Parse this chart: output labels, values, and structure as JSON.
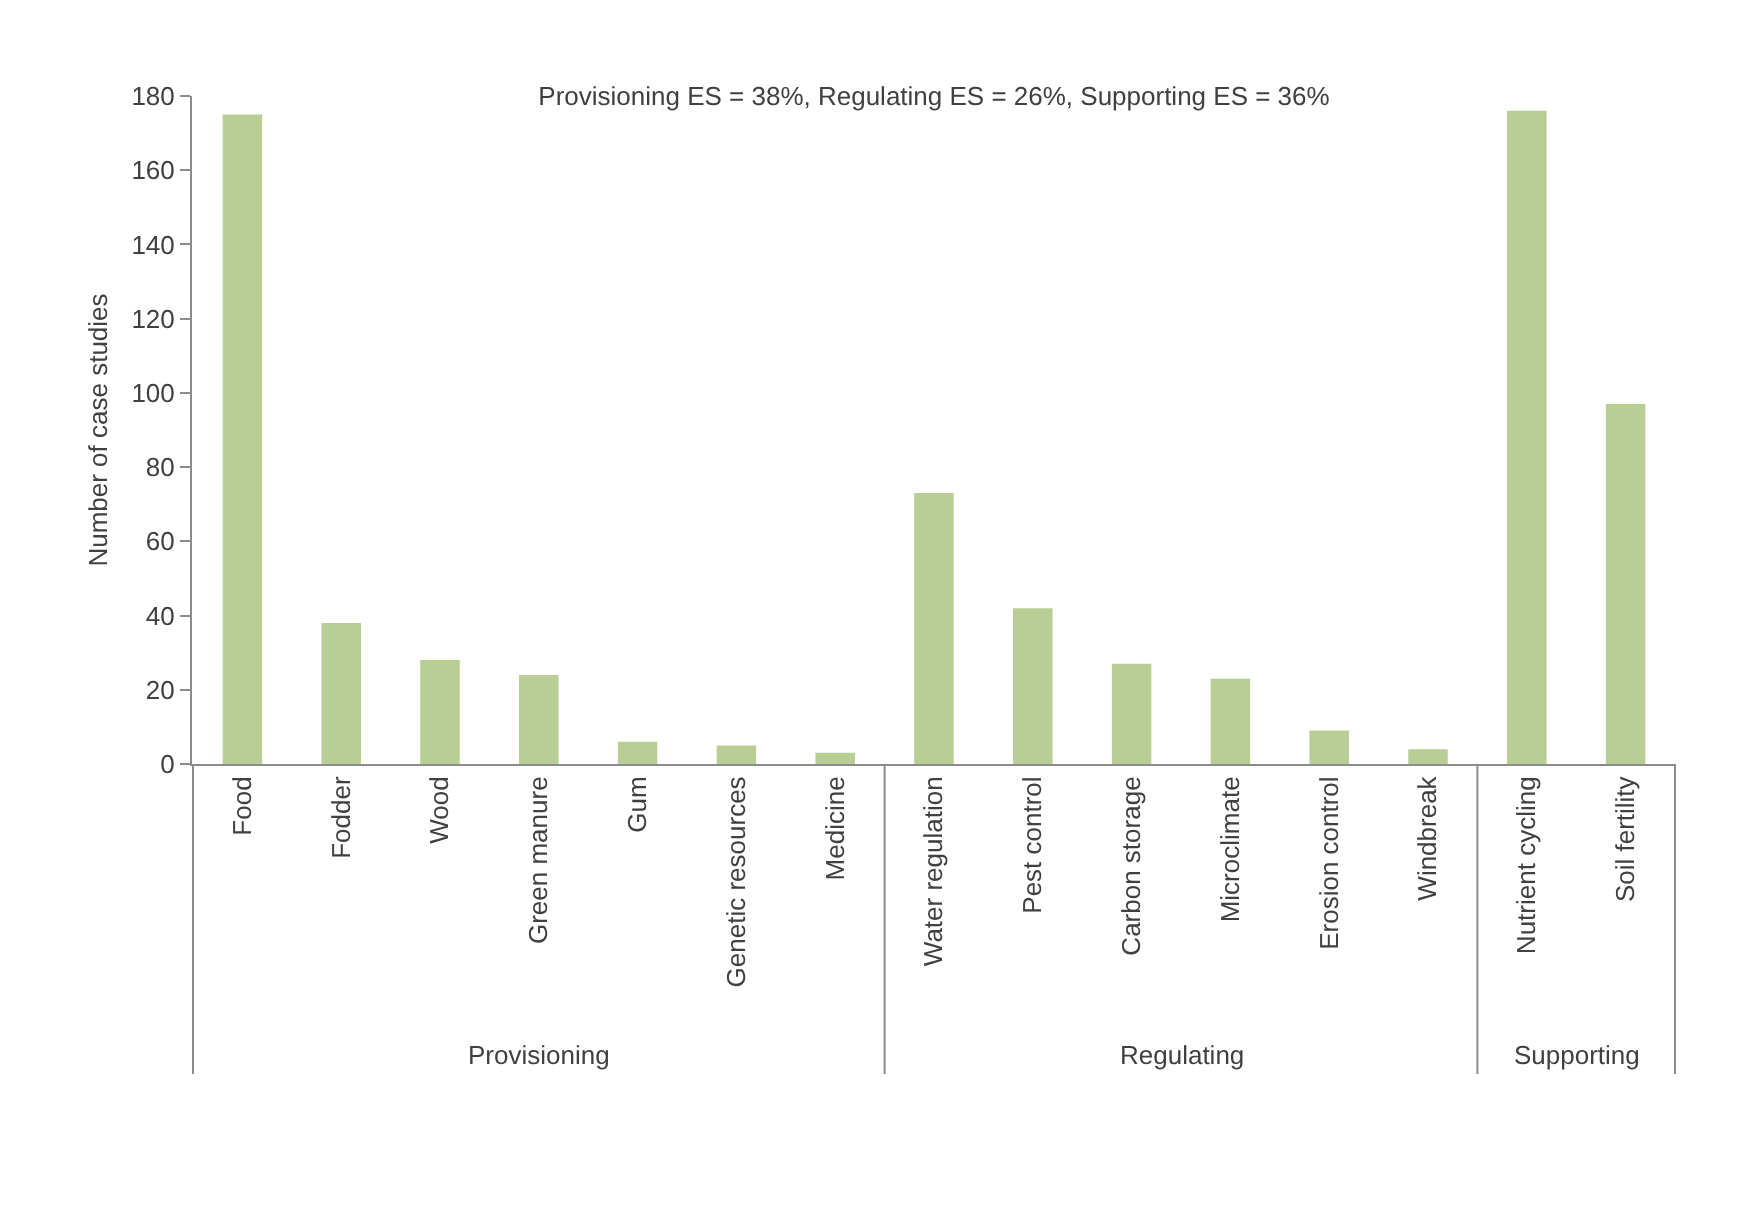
{
  "chart_data": {
    "type": "bar",
    "title": "Provisioning ES = 38%, Regulating ES = 26%, Supporting ES = 36%",
    "ylabel": "Number of case studies",
    "categories": [
      "Food",
      "Fodder",
      "Wood",
      "Green manure",
      "Gum",
      "Genetic resources",
      "Medicine",
      "Water regulation",
      "Pest control",
      "Carbon storage",
      "Microclimate",
      "Erosion control",
      "Windbreak",
      "Nutrient cycling",
      "Soil fertility"
    ],
    "values": [
      175,
      38,
      28,
      24,
      6,
      5,
      3,
      73,
      42,
      27,
      23,
      9,
      4,
      176,
      97
    ],
    "color": "#b9ce95",
    "ylim": [
      0,
      180
    ],
    "yticks": [
      0,
      20,
      40,
      60,
      80,
      100,
      120,
      140,
      160,
      180
    ],
    "annotations": [
      "Provisioning",
      "Regulating",
      "Supporting"
    ]
  }
}
